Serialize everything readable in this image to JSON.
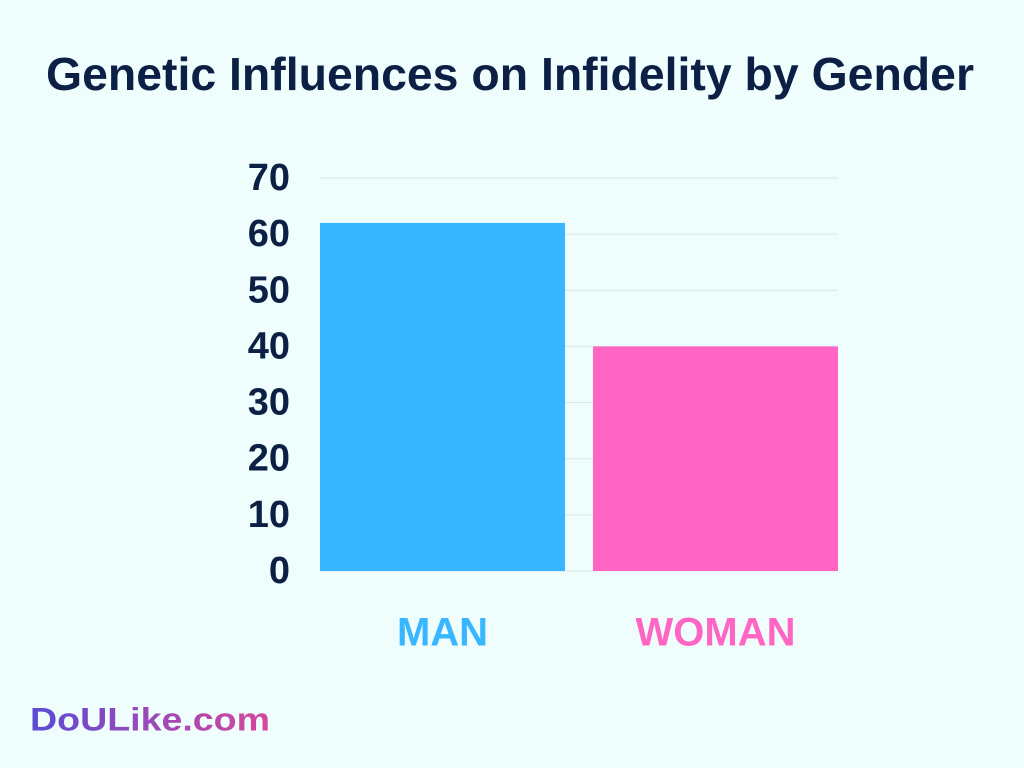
{
  "chart_data": {
    "type": "bar",
    "title": "Genetic Influences on Infidelity by Gender",
    "categories": [
      "MAN",
      "WOMAN"
    ],
    "values": [
      62,
      40
    ],
    "colors": [
      "#38b6ff",
      "#ff66c4"
    ],
    "ylim": [
      0,
      70
    ],
    "yticks": [
      0,
      10,
      20,
      30,
      40,
      50,
      60,
      70
    ],
    "grid": true
  },
  "brand": "DoULike.com"
}
